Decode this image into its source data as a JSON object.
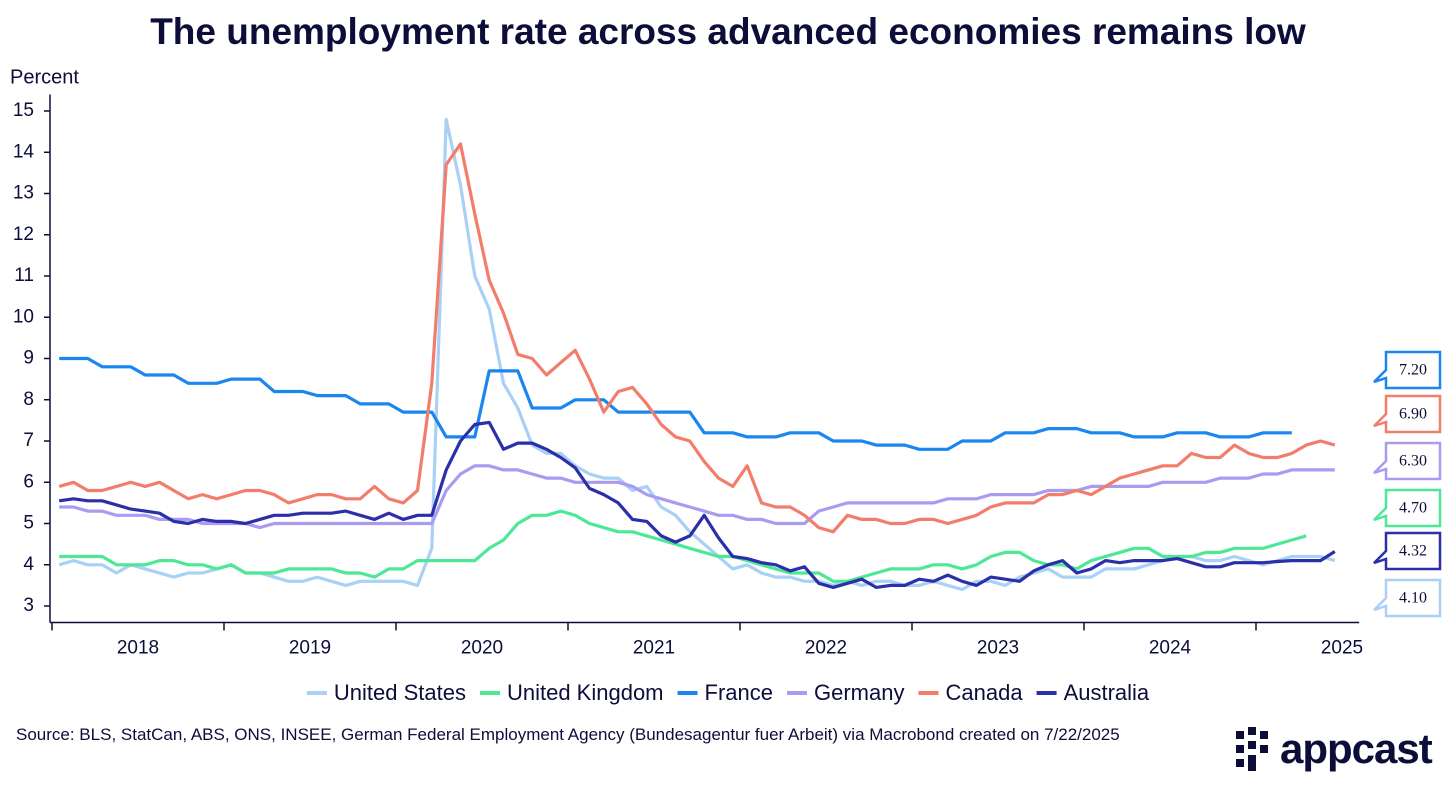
{
  "chart_data": {
    "type": "line",
    "title": "The unemployment rate across advanced economies remains low",
    "y_label": "Percent",
    "xlim": [
      2018,
      2025.6
    ],
    "xticks": [
      2018,
      2019,
      2020,
      2021,
      2022,
      2023,
      2024,
      2025
    ],
    "ylim": [
      2.6,
      15.4
    ],
    "yticks": [
      3,
      4,
      5,
      6,
      7,
      8,
      9,
      10,
      11,
      12,
      13,
      14,
      15
    ],
    "x": [
      2018.042,
      2018.125,
      2018.208,
      2018.292,
      2018.375,
      2018.458,
      2018.542,
      2018.625,
      2018.708,
      2018.792,
      2018.875,
      2018.958,
      2019.042,
      2019.125,
      2019.208,
      2019.292,
      2019.375,
      2019.458,
      2019.542,
      2019.625,
      2019.708,
      2019.792,
      2019.875,
      2019.958,
      2020.042,
      2020.125,
      2020.208,
      2020.292,
      2020.375,
      2020.458,
      2020.542,
      2020.625,
      2020.708,
      2020.792,
      2020.875,
      2020.958,
      2021.042,
      2021.125,
      2021.208,
      2021.292,
      2021.375,
      2021.458,
      2021.542,
      2021.625,
      2021.708,
      2021.792,
      2021.875,
      2021.958,
      2022.042,
      2022.125,
      2022.208,
      2022.292,
      2022.375,
      2022.458,
      2022.542,
      2022.625,
      2022.708,
      2022.792,
      2022.875,
      2022.958,
      2023.042,
      2023.125,
      2023.208,
      2023.292,
      2023.375,
      2023.458,
      2023.542,
      2023.625,
      2023.708,
      2023.792,
      2023.875,
      2023.958,
      2024.042,
      2024.125,
      2024.208,
      2024.292,
      2024.375,
      2024.458,
      2024.542,
      2024.625,
      2024.708,
      2024.792,
      2024.875,
      2024.958,
      2025.042,
      2025.125,
      2025.208,
      2025.292,
      2025.375,
      2025.458
    ],
    "series": [
      {
        "name": "United States",
        "color": "#a9d0f5",
        "values": [
          4.0,
          4.1,
          4.0,
          4.0,
          3.8,
          4.0,
          3.9,
          3.8,
          3.7,
          3.8,
          3.8,
          3.9,
          4.0,
          3.8,
          3.8,
          3.7,
          3.6,
          3.6,
          3.7,
          3.6,
          3.5,
          3.6,
          3.6,
          3.6,
          3.6,
          3.5,
          4.4,
          14.8,
          13.2,
          11.0,
          10.2,
          8.4,
          7.8,
          6.9,
          6.7,
          6.7,
          6.4,
          6.2,
          6.1,
          6.1,
          5.8,
          5.9,
          5.4,
          5.2,
          4.8,
          4.5,
          4.2,
          3.9,
          4.0,
          3.8,
          3.7,
          3.7,
          3.6,
          3.6,
          3.5,
          3.6,
          3.5,
          3.6,
          3.6,
          3.5,
          3.5,
          3.6,
          3.5,
          3.4,
          3.6,
          3.6,
          3.5,
          3.7,
          3.8,
          3.9,
          3.7,
          3.7,
          3.7,
          3.9,
          3.9,
          3.9,
          4.0,
          4.1,
          4.2,
          4.2,
          4.1,
          4.1,
          4.2,
          4.1,
          4.0,
          4.1,
          4.2,
          4.2,
          4.2,
          4.1
        ],
        "value_labels": [
          null,
          null,
          null,
          null,
          null,
          null,
          null,
          null,
          null,
          null,
          null,
          null,
          null,
          null,
          null,
          null,
          null,
          null,
          null,
          null,
          null,
          null,
          null,
          null,
          null,
          null,
          null,
          null,
          null,
          null,
          null,
          null,
          null,
          null,
          null,
          null,
          null,
          null,
          null,
          null,
          null,
          null,
          null,
          null,
          null,
          null,
          null,
          null,
          null,
          null,
          null,
          null,
          null,
          null,
          null,
          null,
          null,
          null,
          null,
          null,
          null,
          null,
          null,
          null,
          null,
          null,
          null,
          null,
          null,
          null,
          null,
          null,
          null,
          null,
          null,
          null,
          null,
          null,
          null,
          null,
          null,
          null,
          null,
          null,
          null,
          null,
          null,
          null,
          null,
          "4.10"
        ]
      },
      {
        "name": "United Kingdom",
        "color": "#4de896",
        "values": [
          4.2,
          4.2,
          4.2,
          4.2,
          4.0,
          4.0,
          4.0,
          4.1,
          4.1,
          4.0,
          4.0,
          3.9,
          4.0,
          3.8,
          3.8,
          3.8,
          3.9,
          3.9,
          3.9,
          3.9,
          3.8,
          3.8,
          3.7,
          3.9,
          3.9,
          4.1,
          4.1,
          4.1,
          4.1,
          4.1,
          4.4,
          4.6,
          5.0,
          5.2,
          5.2,
          5.3,
          5.2,
          5.0,
          4.9,
          4.8,
          4.8,
          4.7,
          4.6,
          4.5,
          4.4,
          4.3,
          4.2,
          4.2,
          4.1,
          4.0,
          3.9,
          3.8,
          3.8,
          3.8,
          3.6,
          3.6,
          3.7,
          3.8,
          3.9,
          3.9,
          3.9,
          4.0,
          4.0,
          3.9,
          4.0,
          4.2,
          4.3,
          4.3,
          4.1,
          4.0,
          4.0,
          3.9,
          4.1,
          4.2,
          4.3,
          4.4,
          4.4,
          4.2,
          4.2,
          4.2,
          4.3,
          4.3,
          4.4,
          4.4,
          4.4,
          4.5,
          4.6,
          4.7,
          null,
          null
        ],
        "value_labels": [
          null,
          null,
          null,
          null,
          null,
          null,
          null,
          null,
          null,
          null,
          null,
          null,
          null,
          null,
          null,
          null,
          null,
          null,
          null,
          null,
          null,
          null,
          null,
          null,
          null,
          null,
          null,
          null,
          null,
          null,
          null,
          null,
          null,
          null,
          null,
          null,
          null,
          null,
          null,
          null,
          null,
          null,
          null,
          null,
          null,
          null,
          null,
          null,
          null,
          null,
          null,
          null,
          null,
          null,
          null,
          null,
          null,
          null,
          null,
          null,
          null,
          null,
          null,
          null,
          null,
          null,
          null,
          null,
          null,
          null,
          null,
          null,
          null,
          null,
          null,
          null,
          null,
          null,
          null,
          null,
          null,
          null,
          null,
          null,
          null,
          null,
          null,
          "4.70",
          null,
          null
        ]
      },
      {
        "name": "France",
        "color": "#1a86f0",
        "values": [
          9.0,
          9.0,
          9.0,
          8.8,
          8.8,
          8.8,
          8.6,
          8.6,
          8.6,
          8.4,
          8.4,
          8.4,
          8.5,
          8.5,
          8.5,
          8.2,
          8.2,
          8.2,
          8.1,
          8.1,
          8.1,
          7.9,
          7.9,
          7.9,
          7.7,
          7.7,
          7.7,
          7.1,
          7.1,
          7.1,
          8.7,
          8.7,
          8.7,
          7.8,
          7.8,
          7.8,
          8.0,
          8.0,
          8.0,
          7.7,
          7.7,
          7.7,
          7.7,
          7.7,
          7.7,
          7.2,
          7.2,
          7.2,
          7.1,
          7.1,
          7.1,
          7.2,
          7.2,
          7.2,
          7.0,
          7.0,
          7.0,
          6.9,
          6.9,
          6.9,
          6.8,
          6.8,
          6.8,
          7.0,
          7.0,
          7.0,
          7.2,
          7.2,
          7.2,
          7.3,
          7.3,
          7.3,
          7.2,
          7.2,
          7.2,
          7.1,
          7.1,
          7.1,
          7.2,
          7.2,
          7.2,
          7.1,
          7.1,
          7.1,
          7.2,
          7.2,
          7.2,
          null,
          null,
          null
        ],
        "value_labels": [
          null,
          null,
          null,
          null,
          null,
          null,
          null,
          null,
          null,
          null,
          null,
          null,
          null,
          null,
          null,
          null,
          null,
          null,
          null,
          null,
          null,
          null,
          null,
          null,
          null,
          null,
          null,
          null,
          null,
          null,
          null,
          null,
          null,
          null,
          null,
          null,
          null,
          null,
          null,
          null,
          null,
          null,
          null,
          null,
          null,
          null,
          null,
          null,
          null,
          null,
          null,
          null,
          null,
          null,
          null,
          null,
          null,
          null,
          null,
          null,
          null,
          null,
          null,
          null,
          null,
          null,
          null,
          null,
          null,
          null,
          null,
          null,
          null,
          null,
          null,
          null,
          null,
          null,
          null,
          null,
          null,
          null,
          null,
          null,
          null,
          null,
          "7.20",
          null,
          null,
          null
        ]
      },
      {
        "name": "Germany",
        "color": "#a99cf0",
        "values": [
          5.4,
          5.4,
          5.3,
          5.3,
          5.2,
          5.2,
          5.2,
          5.1,
          5.1,
          5.1,
          5.0,
          5.0,
          5.0,
          5.0,
          4.9,
          5.0,
          5.0,
          5.0,
          5.0,
          5.0,
          5.0,
          5.0,
          5.0,
          5.0,
          5.0,
          5.0,
          5.0,
          5.8,
          6.2,
          6.4,
          6.4,
          6.3,
          6.3,
          6.2,
          6.1,
          6.1,
          6.0,
          6.0,
          6.0,
          6.0,
          5.9,
          5.7,
          5.6,
          5.5,
          5.4,
          5.3,
          5.2,
          5.2,
          5.1,
          5.1,
          5.0,
          5.0,
          5.0,
          5.3,
          5.4,
          5.5,
          5.5,
          5.5,
          5.5,
          5.5,
          5.5,
          5.5,
          5.6,
          5.6,
          5.6,
          5.7,
          5.7,
          5.7,
          5.7,
          5.8,
          5.8,
          5.8,
          5.9,
          5.9,
          5.9,
          5.9,
          5.9,
          6.0,
          6.0,
          6.0,
          6.0,
          6.1,
          6.1,
          6.1,
          6.2,
          6.2,
          6.3,
          6.3,
          6.3,
          6.3
        ],
        "value_labels": [
          null,
          null,
          null,
          null,
          null,
          null,
          null,
          null,
          null,
          null,
          null,
          null,
          null,
          null,
          null,
          null,
          null,
          null,
          null,
          null,
          null,
          null,
          null,
          null,
          null,
          null,
          null,
          null,
          null,
          null,
          null,
          null,
          null,
          null,
          null,
          null,
          null,
          null,
          null,
          null,
          null,
          null,
          null,
          null,
          null,
          null,
          null,
          null,
          null,
          null,
          null,
          null,
          null,
          null,
          null,
          null,
          null,
          null,
          null,
          null,
          null,
          null,
          null,
          null,
          null,
          null,
          null,
          null,
          null,
          null,
          null,
          null,
          null,
          null,
          null,
          null,
          null,
          null,
          null,
          null,
          null,
          null,
          null,
          null,
          null,
          null,
          null,
          null,
          null,
          "6.30"
        ]
      },
      {
        "name": "Canada",
        "color": "#f27d6b",
        "values": [
          5.9,
          6.0,
          5.8,
          5.8,
          5.9,
          6.0,
          5.9,
          6.0,
          5.8,
          5.6,
          5.7,
          5.6,
          5.7,
          5.8,
          5.8,
          5.7,
          5.5,
          5.6,
          5.7,
          5.7,
          5.6,
          5.6,
          5.9,
          5.6,
          5.5,
          5.8,
          8.4,
          13.7,
          14.2,
          12.5,
          10.9,
          10.1,
          9.1,
          9.0,
          8.6,
          8.9,
          9.2,
          8.5,
          7.7,
          8.2,
          8.3,
          7.9,
          7.4,
          7.1,
          7.0,
          6.5,
          6.1,
          5.9,
          6.4,
          5.5,
          5.4,
          5.4,
          5.2,
          4.9,
          4.8,
          5.2,
          5.1,
          5.1,
          5.0,
          5.0,
          5.1,
          5.1,
          5.0,
          5.1,
          5.2,
          5.4,
          5.5,
          5.5,
          5.5,
          5.7,
          5.7,
          5.8,
          5.7,
          5.9,
          6.1,
          6.2,
          6.3,
          6.4,
          6.4,
          6.7,
          6.6,
          6.6,
          6.9,
          6.7,
          6.6,
          6.6,
          6.7,
          6.9,
          7.0,
          6.9
        ],
        "value_labels": [
          null,
          null,
          null,
          null,
          null,
          null,
          null,
          null,
          null,
          null,
          null,
          null,
          null,
          null,
          null,
          null,
          null,
          null,
          null,
          null,
          null,
          null,
          null,
          null,
          null,
          null,
          null,
          null,
          null,
          null,
          null,
          null,
          null,
          null,
          null,
          null,
          null,
          null,
          null,
          null,
          null,
          null,
          null,
          null,
          null,
          null,
          null,
          null,
          null,
          null,
          null,
          null,
          null,
          null,
          null,
          null,
          null,
          null,
          null,
          null,
          null,
          null,
          null,
          null,
          null,
          null,
          null,
          null,
          null,
          null,
          null,
          null,
          null,
          null,
          null,
          null,
          null,
          null,
          null,
          null,
          null,
          null,
          null,
          null,
          null,
          null,
          null,
          null,
          null,
          "6.90"
        ]
      },
      {
        "name": "Australia",
        "color": "#2b2fa8",
        "values": [
          5.55,
          5.6,
          5.55,
          5.55,
          5.45,
          5.35,
          5.3,
          5.25,
          5.05,
          5.0,
          5.1,
          5.05,
          5.05,
          5.0,
          5.1,
          5.2,
          5.2,
          5.25,
          5.25,
          5.25,
          5.3,
          5.2,
          5.1,
          5.25,
          5.1,
          5.2,
          5.2,
          6.3,
          7.0,
          7.4,
          7.45,
          6.8,
          6.95,
          6.95,
          6.8,
          6.6,
          6.35,
          5.85,
          5.7,
          5.5,
          5.1,
          5.05,
          4.7,
          4.55,
          4.7,
          5.2,
          4.65,
          4.2,
          4.15,
          4.05,
          4.0,
          3.85,
          3.95,
          3.55,
          3.45,
          3.55,
          3.65,
          3.45,
          3.5,
          3.5,
          3.65,
          3.6,
          3.75,
          3.6,
          3.5,
          3.7,
          3.65,
          3.6,
          3.85,
          4.0,
          4.1,
          3.8,
          3.9,
          4.1,
          4.05,
          4.1,
          4.1,
          4.1,
          4.15,
          4.05,
          3.95,
          3.95,
          4.05,
          4.05,
          4.05,
          4.08,
          4.1,
          4.1,
          4.1,
          4.32
        ],
        "value_labels": [
          null,
          null,
          null,
          null,
          null,
          null,
          null,
          null,
          null,
          null,
          null,
          null,
          null,
          null,
          null,
          null,
          null,
          null,
          null,
          null,
          null,
          null,
          null,
          null,
          null,
          null,
          null,
          null,
          null,
          null,
          null,
          null,
          null,
          null,
          null,
          null,
          null,
          null,
          null,
          null,
          null,
          null,
          null,
          null,
          null,
          null,
          null,
          null,
          null,
          null,
          null,
          null,
          null,
          null,
          null,
          null,
          null,
          null,
          null,
          null,
          null,
          null,
          null,
          null,
          null,
          null,
          null,
          null,
          null,
          null,
          null,
          null,
          null,
          null,
          null,
          null,
          null,
          null,
          null,
          null,
          null,
          null,
          null,
          null,
          null,
          null,
          null,
          null,
          null,
          "4.32"
        ]
      }
    ]
  },
  "source": "Source: BLS, StatCan, ABS, ONS, INSEE, German Federal Employment Agency (Bundesagentur fuer Arbeit) via Macrobond created on 7/22/2025",
  "logo": "appcast"
}
